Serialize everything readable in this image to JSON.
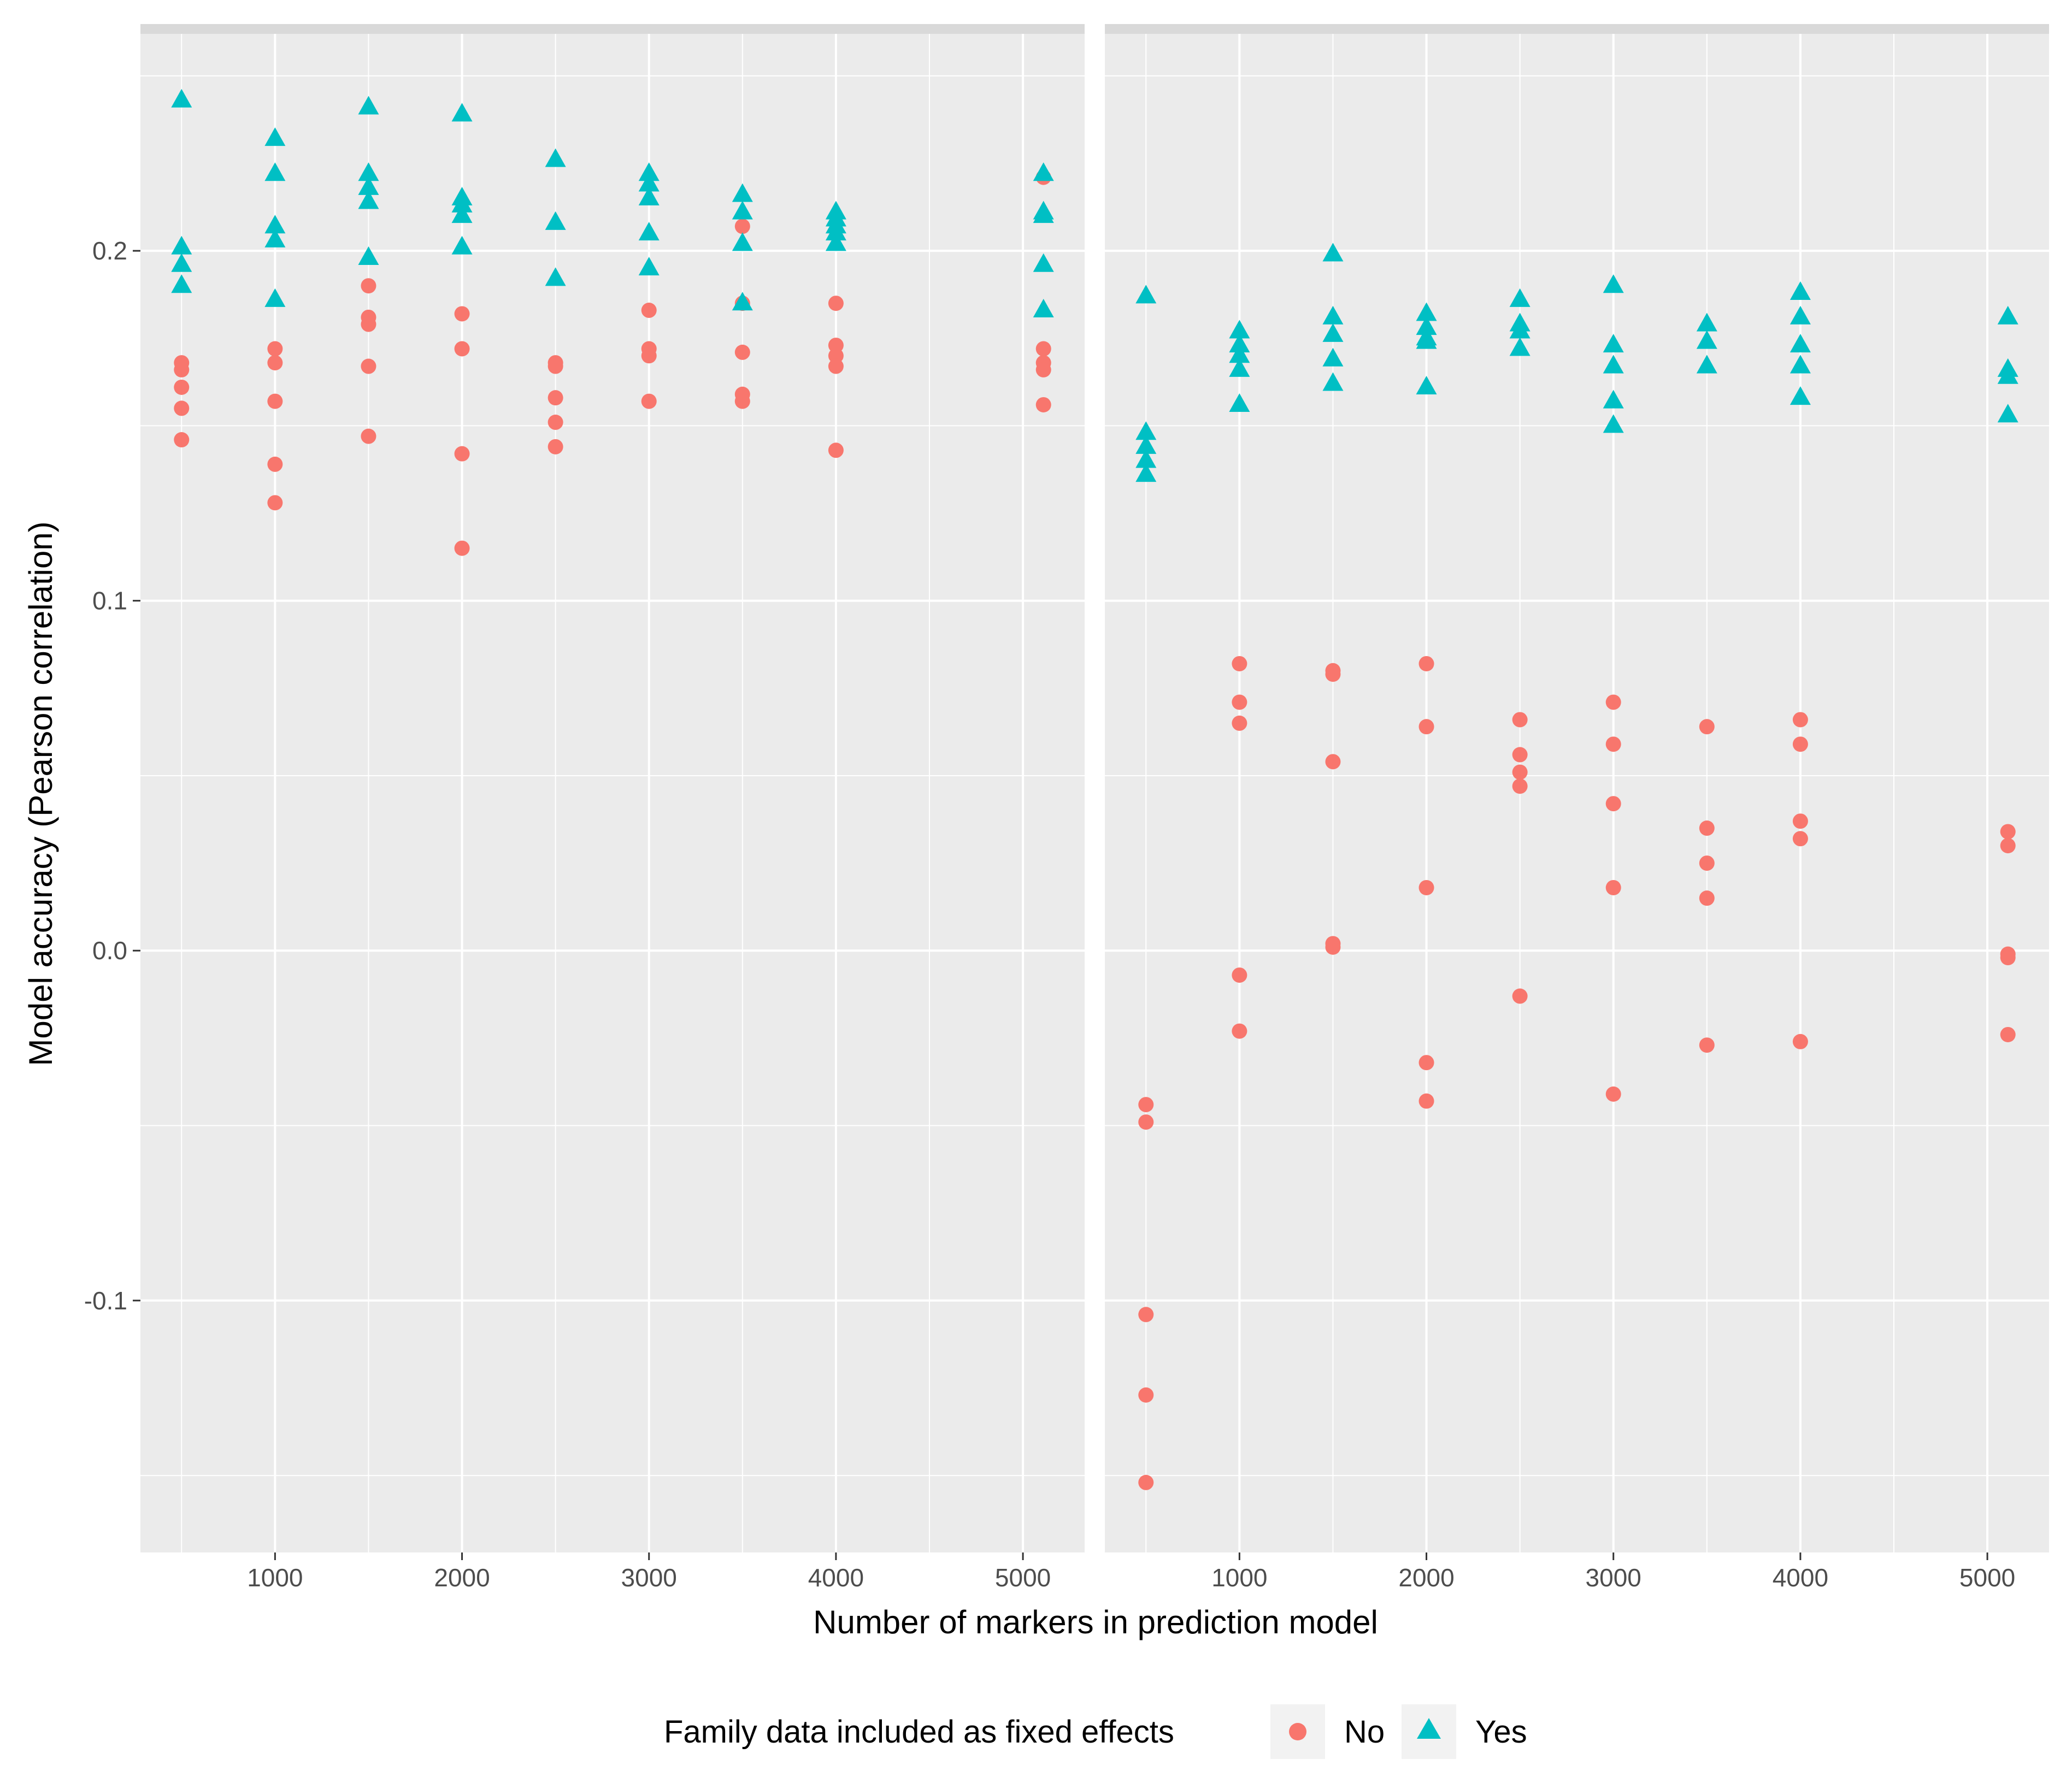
{
  "chart_data": {
    "type": "scatter",
    "xlabel": "Number of markers in prediction model",
    "ylabel": "Model accuracy (Pearson correlation)",
    "xlim": [
      280,
      5330
    ],
    "ylim": [
      -0.172,
      0.262
    ],
    "x_ticks": [
      1000,
      2000,
      3000,
      4000,
      5000
    ],
    "x_tick_labels": [
      "1000",
      "2000",
      "3000",
      "4000",
      "5000"
    ],
    "y_ticks": [
      0.2,
      0.1,
      0.0,
      -0.1
    ],
    "y_tick_labels": [
      "0.2",
      "0.1",
      "0.0",
      "-0.1"
    ],
    "legend": {
      "title": "Family data included as fixed effects",
      "position": "bottom",
      "entries": [
        {
          "label": "No",
          "shape": "circle",
          "color": "#F8766D"
        },
        {
          "label": "Yes",
          "shape": "triangle",
          "color": "#00BFC4"
        }
      ]
    },
    "colors": {
      "panel_bg": "#EBEBEB",
      "strip_bg": "#D9D9D9",
      "grid": "#FFFFFF",
      "tick": "#333333"
    },
    "panels": [
      {
        "series": [
          {
            "name": "No",
            "points": [
              [
                500,
                0.168
              ],
              [
                500,
                0.166
              ],
              [
                500,
                0.161
              ],
              [
                500,
                0.155
              ],
              [
                500,
                0.146
              ],
              [
                1000,
                0.172
              ],
              [
                1000,
                0.168
              ],
              [
                1000,
                0.157
              ],
              [
                1000,
                0.139
              ],
              [
                1000,
                0.128
              ],
              [
                1500,
                0.19
              ],
              [
                1500,
                0.181
              ],
              [
                1500,
                0.179
              ],
              [
                1500,
                0.167
              ],
              [
                1500,
                0.147
              ],
              [
                2000,
                0.182
              ],
              [
                2000,
                0.172
              ],
              [
                2000,
                0.142
              ],
              [
                2000,
                0.115
              ],
              [
                2500,
                0.168
              ],
              [
                2500,
                0.167
              ],
              [
                2500,
                0.158
              ],
              [
                2500,
                0.151
              ],
              [
                2500,
                0.144
              ],
              [
                3000,
                0.183
              ],
              [
                3000,
                0.172
              ],
              [
                3000,
                0.17
              ],
              [
                3000,
                0.157
              ],
              [
                3500,
                0.207
              ],
              [
                3500,
                0.185
              ],
              [
                3500,
                0.171
              ],
              [
                3500,
                0.159
              ],
              [
                3500,
                0.157
              ],
              [
                4000,
                0.185
              ],
              [
                4000,
                0.173
              ],
              [
                4000,
                0.17
              ],
              [
                4000,
                0.167
              ],
              [
                4000,
                0.143
              ],
              [
                5110,
                0.221
              ],
              [
                5110,
                0.172
              ],
              [
                5110,
                0.168
              ],
              [
                5110,
                0.166
              ],
              [
                5110,
                0.156
              ]
            ]
          },
          {
            "name": "Yes",
            "points": [
              [
                500,
                0.243
              ],
              [
                500,
                0.201
              ],
              [
                500,
                0.196
              ],
              [
                500,
                0.19
              ],
              [
                1000,
                0.232
              ],
              [
                1000,
                0.222
              ],
              [
                1000,
                0.207
              ],
              [
                1000,
                0.203
              ],
              [
                1000,
                0.186
              ],
              [
                1500,
                0.241
              ],
              [
                1500,
                0.222
              ],
              [
                1500,
                0.218
              ],
              [
                1500,
                0.214
              ],
              [
                1500,
                0.198
              ],
              [
                2000,
                0.239
              ],
              [
                2000,
                0.215
              ],
              [
                2000,
                0.213
              ],
              [
                2000,
                0.21
              ],
              [
                2000,
                0.201
              ],
              [
                2500,
                0.226
              ],
              [
                2500,
                0.208
              ],
              [
                2500,
                0.192
              ],
              [
                3000,
                0.222
              ],
              [
                3000,
                0.219
              ],
              [
                3000,
                0.215
              ],
              [
                3000,
                0.205
              ],
              [
                3000,
                0.195
              ],
              [
                3500,
                0.216
              ],
              [
                3500,
                0.211
              ],
              [
                3500,
                0.202
              ],
              [
                3500,
                0.185
              ],
              [
                4000,
                0.211
              ],
              [
                4000,
                0.209
              ],
              [
                4000,
                0.207
              ],
              [
                4000,
                0.205
              ],
              [
                4000,
                0.202
              ],
              [
                5110,
                0.222
              ],
              [
                5110,
                0.211
              ],
              [
                5110,
                0.21
              ],
              [
                5110,
                0.196
              ],
              [
                5110,
                0.183
              ]
            ]
          }
        ]
      },
      {
        "series": [
          {
            "name": "No",
            "points": [
              [
                500,
                -0.044
              ],
              [
                500,
                -0.049
              ],
              [
                500,
                -0.104
              ],
              [
                500,
                -0.127
              ],
              [
                500,
                -0.152
              ],
              [
                1000,
                0.082
              ],
              [
                1000,
                0.071
              ],
              [
                1000,
                0.065
              ],
              [
                1000,
                -0.007
              ],
              [
                1000,
                -0.023
              ],
              [
                1500,
                0.08
              ],
              [
                1500,
                0.079
              ],
              [
                1500,
                0.054
              ],
              [
                1500,
                0.002
              ],
              [
                1500,
                0.001
              ],
              [
                2000,
                0.082
              ],
              [
                2000,
                0.064
              ],
              [
                2000,
                0.018
              ],
              [
                2000,
                -0.032
              ],
              [
                2000,
                -0.043
              ],
              [
                2500,
                0.066
              ],
              [
                2500,
                0.056
              ],
              [
                2500,
                0.051
              ],
              [
                2500,
                0.047
              ],
              [
                2500,
                -0.013
              ],
              [
                3000,
                0.071
              ],
              [
                3000,
                0.059
              ],
              [
                3000,
                0.042
              ],
              [
                3000,
                0.018
              ],
              [
                3000,
                -0.041
              ],
              [
                3500,
                0.064
              ],
              [
                3500,
                0.035
              ],
              [
                3500,
                0.025
              ],
              [
                3500,
                0.015
              ],
              [
                3500,
                -0.027
              ],
              [
                4000,
                0.066
              ],
              [
                4000,
                0.059
              ],
              [
                4000,
                0.037
              ],
              [
                4000,
                0.032
              ],
              [
                4000,
                -0.026
              ],
              [
                5110,
                0.034
              ],
              [
                5110,
                0.03
              ],
              [
                5110,
                -0.001
              ],
              [
                5110,
                -0.002
              ],
              [
                5110,
                -0.024
              ]
            ]
          },
          {
            "name": "Yes",
            "points": [
              [
                500,
                0.187
              ],
              [
                500,
                0.148
              ],
              [
                500,
                0.144
              ],
              [
                500,
                0.14
              ],
              [
                500,
                0.136
              ],
              [
                1000,
                0.177
              ],
              [
                1000,
                0.173
              ],
              [
                1000,
                0.17
              ],
              [
                1000,
                0.166
              ],
              [
                1000,
                0.156
              ],
              [
                1500,
                0.199
              ],
              [
                1500,
                0.181
              ],
              [
                1500,
                0.176
              ],
              [
                1500,
                0.169
              ],
              [
                1500,
                0.162
              ],
              [
                2000,
                0.182
              ],
              [
                2000,
                0.178
              ],
              [
                2000,
                0.175
              ],
              [
                2000,
                0.174
              ],
              [
                2000,
                0.161
              ],
              [
                2500,
                0.186
              ],
              [
                2500,
                0.179
              ],
              [
                2500,
                0.177
              ],
              [
                2500,
                0.172
              ],
              [
                3000,
                0.19
              ],
              [
                3000,
                0.173
              ],
              [
                3000,
                0.167
              ],
              [
                3000,
                0.157
              ],
              [
                3000,
                0.15
              ],
              [
                3500,
                0.179
              ],
              [
                3500,
                0.174
              ],
              [
                3500,
                0.167
              ],
              [
                4000,
                0.188
              ],
              [
                4000,
                0.181
              ],
              [
                4000,
                0.173
              ],
              [
                4000,
                0.167
              ],
              [
                4000,
                0.158
              ],
              [
                5110,
                0.181
              ],
              [
                5110,
                0.166
              ],
              [
                5110,
                0.164
              ],
              [
                5110,
                0.153
              ]
            ]
          }
        ]
      }
    ]
  }
}
